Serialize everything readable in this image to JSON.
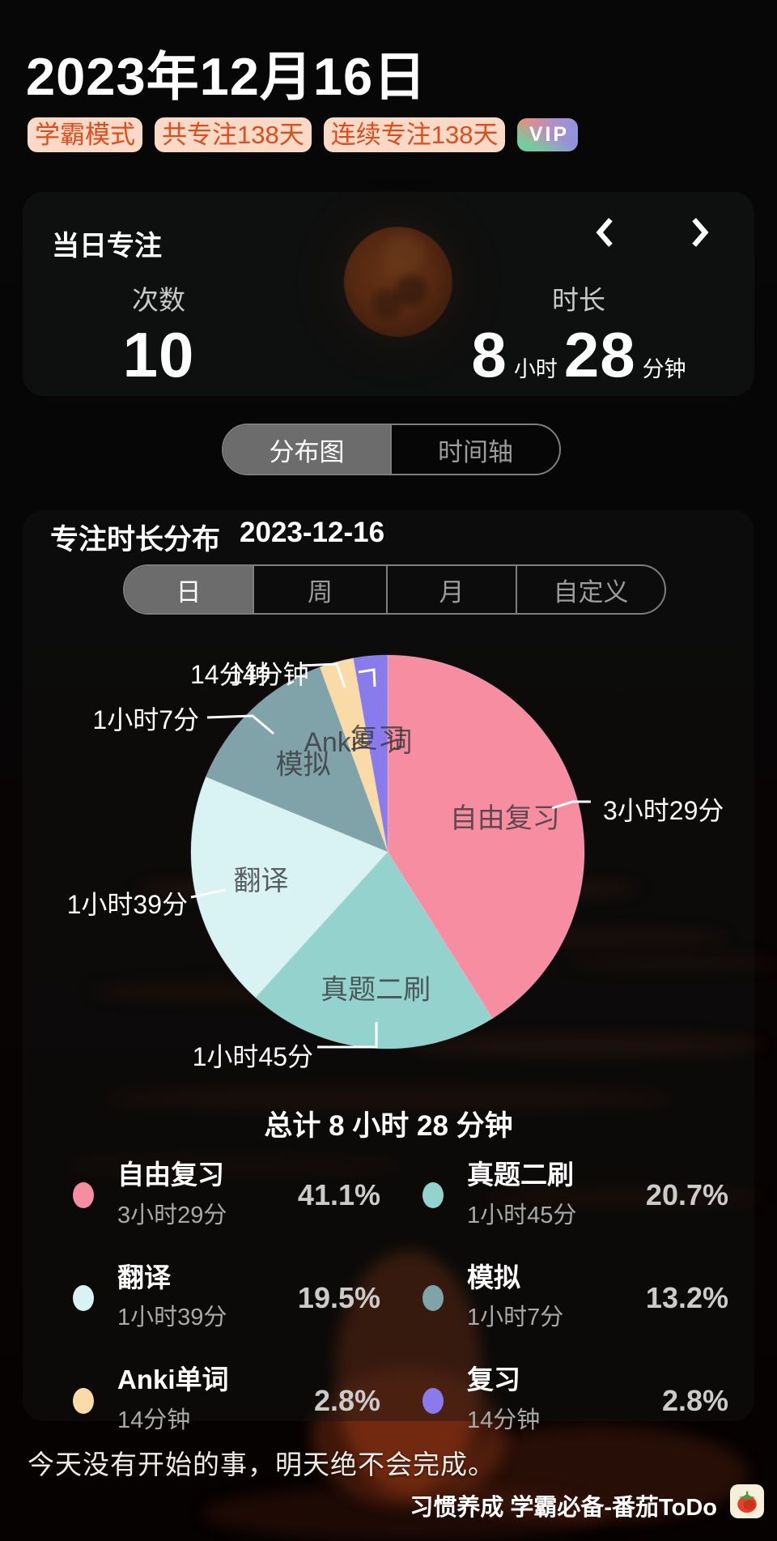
{
  "page": {
    "date_title": "2023年12月16日",
    "badges": {
      "mode": "学霸模式",
      "total_days": "共专注138天",
      "streak_days": "连续专注138天",
      "vip": "VIP"
    },
    "quote": "今天没有开始的事，明天绝不会完成。",
    "watermark": "习惯养成 学霸必备-番茄ToDo"
  },
  "today_card": {
    "title": "当日专注",
    "count_label": "次数",
    "count_value": "10",
    "duration_label": "时长",
    "hours_value": "8",
    "hours_unit": "小时",
    "minutes_value": "28",
    "minutes_unit": "分钟"
  },
  "view_toggle": {
    "distribution": "分布图",
    "timeline": "时间轴"
  },
  "distribution_card": {
    "title": "专注时长分布",
    "date": "2023-12-16",
    "range_tabs": {
      "day": "日",
      "week": "周",
      "month": "月",
      "custom": "自定义"
    },
    "total_label": "总计 8 小时 28 分钟"
  },
  "colors": {
    "badge_bg": "#fbd9c7",
    "badge_text": "#dc4e1d",
    "selected_segment": "#6c6c6c"
  },
  "chart_data": {
    "type": "pie",
    "title": "专注时长分布 2023-12-16",
    "total_label": "总计 8 小时 28 分钟",
    "legend_position": "bottom",
    "start_angle": "12-o-clock",
    "direction": "clockwise",
    "series": [
      {
        "name": "自由复习",
        "duration": "3小时29分",
        "minutes": 209,
        "percent": 41.1,
        "percent_label": "41.1%",
        "color": "#F78DA0"
      },
      {
        "name": "真题二刷",
        "duration": "1小时45分",
        "minutes": 105,
        "percent": 20.7,
        "percent_label": "20.7%",
        "color": "#94D2CE"
      },
      {
        "name": "翻译",
        "duration": "1小时39分",
        "minutes": 99,
        "percent": 19.5,
        "percent_label": "19.5%",
        "color": "#D9F2F3"
      },
      {
        "name": "模拟",
        "duration": "1小时7分",
        "minutes": 67,
        "percent": 13.2,
        "percent_label": "13.2%",
        "color": "#7FA3A9"
      },
      {
        "name": "Anki单词",
        "duration": "14分钟",
        "minutes": 14,
        "percent": 2.8,
        "percent_label": "2.8%",
        "color": "#FADBA8"
      },
      {
        "name": "复习",
        "duration": "14分钟",
        "minutes": 14,
        "percent": 2.8,
        "percent_label": "2.8%",
        "color": "#8A7BEC"
      }
    ]
  }
}
